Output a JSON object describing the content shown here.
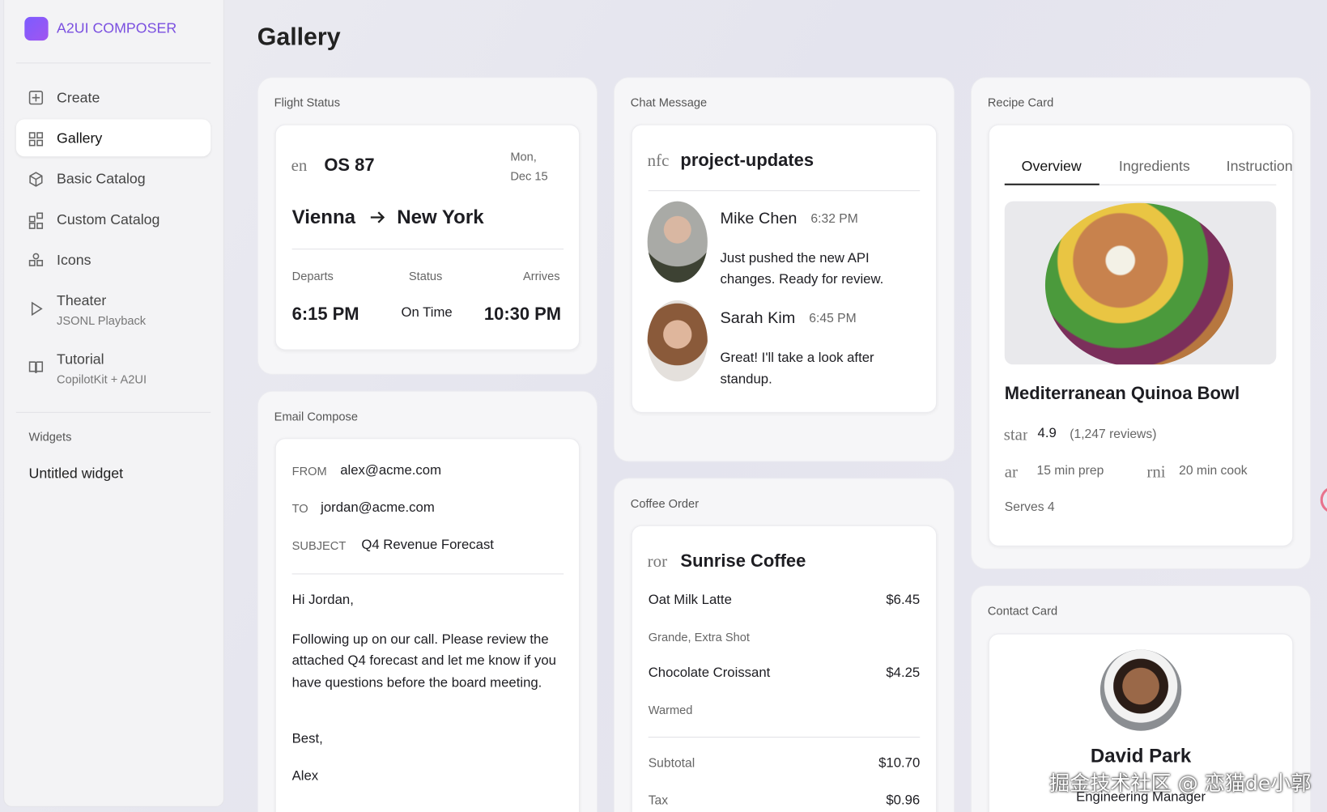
{
  "sidebar": {
    "brand": "A2UI COMPOSER",
    "nav": [
      {
        "label": "Create"
      },
      {
        "label": "Gallery"
      },
      {
        "label": "Basic Catalog"
      },
      {
        "label": "Custom Catalog"
      },
      {
        "label": "Icons"
      },
      {
        "label": "Theater",
        "sub": "JSONL Playback"
      },
      {
        "label": "Tutorial",
        "sub": "CopilotKit + A2UI"
      }
    ],
    "section": "Widgets",
    "widgets": [
      "Untitled widget"
    ]
  },
  "page_title": "Gallery",
  "flight": {
    "card_label": "Flight Status",
    "icon": "en",
    "number": "OS 87",
    "date": [
      "Mon,",
      "Dec 15"
    ],
    "from": "Vienna",
    "to": "New York",
    "labels": [
      "Departs",
      "Status",
      "Arrives"
    ],
    "values": [
      "6:15 PM",
      "On Time",
      "10:30 PM"
    ]
  },
  "email": {
    "card_label": "Email Compose",
    "fields": [
      {
        "label": "FROM",
        "value": "alex@acme.com"
      },
      {
        "label": "TO",
        "value": "jordan@acme.com"
      },
      {
        "label": "SUBJECT",
        "value": "Q4 Revenue Forecast"
      }
    ],
    "greeting": "Hi Jordan,",
    "body": "Following up on our call. Please review the attached Q4 forecast and let me know if you have questions before the board meeting.",
    "closing": "Best,",
    "signature": "Alex"
  },
  "chat": {
    "card_label": "Chat Message",
    "icon": "nfc",
    "channel": "project-updates",
    "messages": [
      {
        "name": "Mike Chen",
        "time": "6:32 PM",
        "text": "Just pushed the new API changes. Ready for review."
      },
      {
        "name": "Sarah Kim",
        "time": "6:45 PM",
        "text": "Great! I'll take a look after standup."
      }
    ]
  },
  "coffee": {
    "card_label": "Coffee Order",
    "icon": "ror",
    "shop": "Sunrise Coffee",
    "items": [
      {
        "name": "Oat Milk Latte",
        "price": "$6.45",
        "note": "Grande, Extra Shot"
      },
      {
        "name": "Chocolate Croissant",
        "price": "$4.25",
        "note": "Warmed"
      }
    ],
    "totals": [
      {
        "label": "Subtotal",
        "value": "$10.70"
      },
      {
        "label": "Tax",
        "value": "$0.96"
      }
    ]
  },
  "recipe": {
    "card_label": "Recipe Card",
    "tabs": [
      "Overview",
      "Ingredients",
      "Instructions"
    ],
    "title": "Mediterranean Quinoa Bowl",
    "rating_icon": "star",
    "rating": "4.9",
    "reviews": "(1,247 reviews)",
    "prep_icon": "ar",
    "prep": "15 min prep",
    "cook_icon": "rni",
    "cook": "20 min cook",
    "serves": "Serves 4"
  },
  "contact": {
    "card_label": "Contact Card",
    "name": "David Park",
    "role": "Engineering Manager"
  },
  "watermark": "掘金技术社区 @ 恋猫de小郭"
}
